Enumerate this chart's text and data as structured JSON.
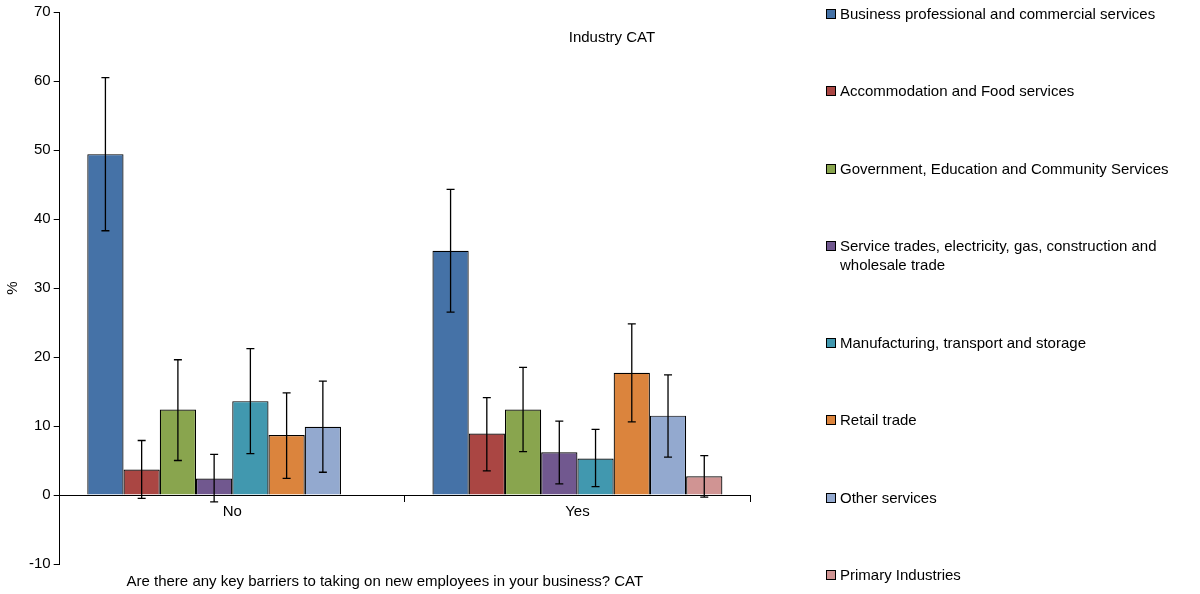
{
  "chart_data": {
    "type": "bar",
    "legend_title": "Industry CAT",
    "xlabel": "Are there any key barriers to taking on new employees in your business? CAT",
    "ylabel": "%",
    "categories": [
      "No",
      "Yes"
    ],
    "series": [
      {
        "name": "Business professional and commercial services",
        "color": "#4572a7",
        "values": [
          49.4,
          35.4
        ],
        "errors": [
          [
            38.3,
            60.5
          ],
          [
            26.5,
            44.3
          ]
        ]
      },
      {
        "name": "Accommodation and Food services",
        "color": "#aa4643",
        "values": [
          3.7,
          8.9
        ],
        "errors": [
          [
            -0.5,
            7.9
          ],
          [
            3.5,
            14.1
          ]
        ]
      },
      {
        "name": "Government, Education and Community Services",
        "color": "#89a54e",
        "values": [
          12.4,
          12.4
        ],
        "errors": [
          [
            5.0,
            19.6
          ],
          [
            6.3,
            18.5
          ]
        ]
      },
      {
        "name": "Service trades, electricity, gas, construction and wholesale trade",
        "color": "#71588f",
        "values": [
          2.4,
          6.2
        ],
        "errors": [
          [
            -1.0,
            5.9
          ],
          [
            1.6,
            10.7
          ]
        ]
      },
      {
        "name": "Manufacturing, transport and storage",
        "color": "#4198af",
        "values": [
          13.6,
          5.3
        ],
        "errors": [
          [
            6.0,
            21.2
          ],
          [
            1.2,
            9.5
          ]
        ]
      },
      {
        "name": "Retail trade",
        "color": "#db843d",
        "values": [
          8.7,
          17.7
        ],
        "errors": [
          [
            2.4,
            14.8
          ],
          [
            10.6,
            24.8
          ]
        ]
      },
      {
        "name": "Other services",
        "color": "#93a9cf",
        "values": [
          9.9,
          11.5
        ],
        "errors": [
          [
            3.3,
            16.5
          ],
          [
            5.5,
            17.4
          ]
        ]
      },
      {
        "name": "Primary Industries",
        "color": "#d09493",
        "values": [
          0,
          2.7
        ],
        "errors": [
          null,
          [
            -0.3,
            5.7
          ]
        ]
      }
    ],
    "ylim": [
      -10,
      70
    ],
    "yticks": [
      -10,
      0,
      10,
      20,
      30,
      40,
      50,
      60,
      70
    ],
    "grid": false,
    "legend": "right"
  }
}
